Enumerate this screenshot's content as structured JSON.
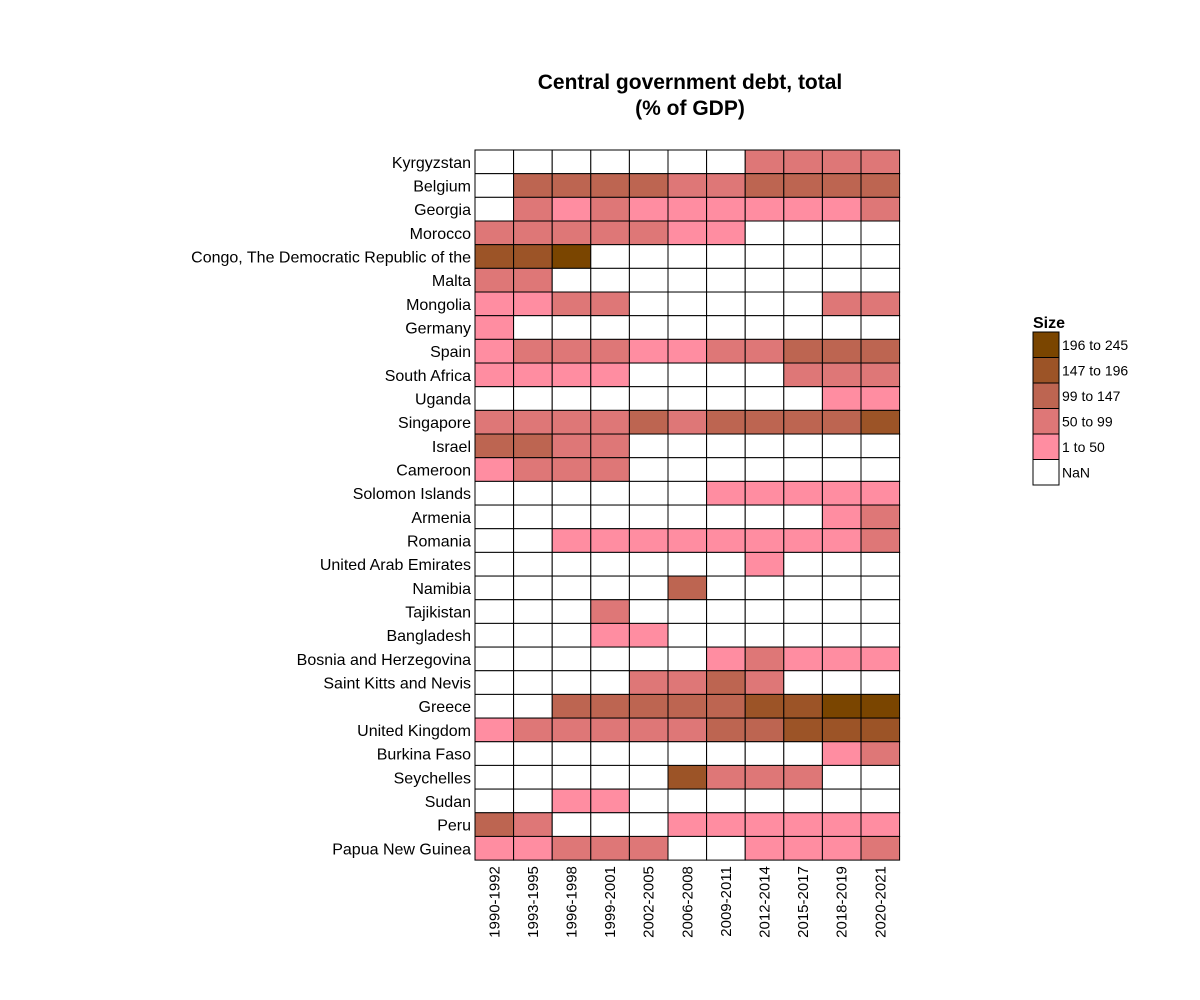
{
  "chart_data": {
    "type": "heatmap",
    "title_lines": [
      "Central government debt, total",
      "(% of GDP)"
    ],
    "columns": [
      "1990-1992",
      "1993-1995",
      "1996-1998",
      "1999-2001",
      "2002-2005",
      "2006-2008",
      "2009-2011",
      "2012-2014",
      "2015-2017",
      "2018-2019",
      "2020-2021"
    ],
    "rows": [
      {
        "label": "Kyrgyzstan",
        "cells": [
          0,
          0,
          0,
          0,
          0,
          0,
          0,
          2,
          2,
          2,
          2
        ]
      },
      {
        "label": "Belgium",
        "cells": [
          0,
          3,
          3,
          3,
          3,
          2,
          2,
          3,
          3,
          3,
          3
        ]
      },
      {
        "label": "Georgia",
        "cells": [
          0,
          2,
          1,
          2,
          1,
          1,
          1,
          1,
          1,
          1,
          2
        ]
      },
      {
        "label": "Morocco",
        "cells": [
          2,
          2,
          2,
          2,
          2,
          1,
          1,
          0,
          0,
          0,
          0
        ]
      },
      {
        "label": "Congo, The Democratic Republic of the",
        "cells": [
          4,
          4,
          5,
          0,
          0,
          0,
          0,
          0,
          0,
          0,
          0
        ]
      },
      {
        "label": "Malta",
        "cells": [
          2,
          2,
          0,
          0,
          0,
          0,
          0,
          0,
          0,
          0,
          0
        ]
      },
      {
        "label": "Mongolia",
        "cells": [
          1,
          1,
          2,
          2,
          0,
          0,
          0,
          0,
          0,
          2,
          2
        ]
      },
      {
        "label": "Germany",
        "cells": [
          1,
          0,
          0,
          0,
          0,
          0,
          0,
          0,
          0,
          0,
          0
        ]
      },
      {
        "label": "Spain",
        "cells": [
          1,
          2,
          2,
          2,
          1,
          1,
          2,
          2,
          3,
          3,
          3
        ]
      },
      {
        "label": "South Africa",
        "cells": [
          1,
          1,
          1,
          1,
          0,
          0,
          0,
          0,
          2,
          2,
          2
        ]
      },
      {
        "label": "Uganda",
        "cells": [
          0,
          0,
          0,
          0,
          0,
          0,
          0,
          0,
          0,
          1,
          1
        ]
      },
      {
        "label": "Singapore",
        "cells": [
          2,
          2,
          2,
          2,
          3,
          2,
          3,
          3,
          3,
          3,
          4
        ]
      },
      {
        "label": "Israel",
        "cells": [
          3,
          3,
          2,
          2,
          0,
          0,
          0,
          0,
          0,
          0,
          0
        ]
      },
      {
        "label": "Cameroon",
        "cells": [
          1,
          2,
          2,
          2,
          0,
          0,
          0,
          0,
          0,
          0,
          0
        ]
      },
      {
        "label": "Solomon Islands",
        "cells": [
          0,
          0,
          0,
          0,
          0,
          0,
          1,
          1,
          1,
          1,
          1
        ]
      },
      {
        "label": "Armenia",
        "cells": [
          0,
          0,
          0,
          0,
          0,
          0,
          0,
          0,
          0,
          1,
          2
        ]
      },
      {
        "label": "Romania",
        "cells": [
          0,
          0,
          1,
          1,
          1,
          1,
          1,
          1,
          1,
          1,
          2
        ]
      },
      {
        "label": "United Arab Emirates",
        "cells": [
          0,
          0,
          0,
          0,
          0,
          0,
          0,
          1,
          0,
          0,
          0
        ]
      },
      {
        "label": "Namibia",
        "cells": [
          0,
          0,
          0,
          0,
          0,
          3,
          0,
          0,
          0,
          0,
          0
        ]
      },
      {
        "label": "Tajikistan",
        "cells": [
          0,
          0,
          0,
          2,
          0,
          0,
          0,
          0,
          0,
          0,
          0
        ]
      },
      {
        "label": "Bangladesh",
        "cells": [
          0,
          0,
          0,
          1,
          1,
          0,
          0,
          0,
          0,
          0,
          0
        ]
      },
      {
        "label": "Bosnia and Herzegovina",
        "cells": [
          0,
          0,
          0,
          0,
          0,
          0,
          1,
          2,
          1,
          1,
          1
        ]
      },
      {
        "label": "Saint Kitts and Nevis",
        "cells": [
          0,
          0,
          0,
          0,
          2,
          2,
          3,
          2,
          0,
          0,
          0
        ]
      },
      {
        "label": "Greece",
        "cells": [
          0,
          0,
          3,
          3,
          3,
          3,
          3,
          4,
          4,
          5,
          5
        ]
      },
      {
        "label": "United Kingdom",
        "cells": [
          1,
          2,
          2,
          2,
          2,
          2,
          3,
          3,
          4,
          4,
          4
        ]
      },
      {
        "label": "Burkina Faso",
        "cells": [
          0,
          0,
          0,
          0,
          0,
          0,
          0,
          0,
          0,
          1,
          2
        ]
      },
      {
        "label": "Seychelles",
        "cells": [
          0,
          0,
          0,
          0,
          0,
          4,
          2,
          2,
          2,
          0,
          0
        ]
      },
      {
        "label": "Sudan",
        "cells": [
          0,
          0,
          1,
          1,
          0,
          0,
          0,
          0,
          0,
          0,
          0
        ]
      },
      {
        "label": "Peru",
        "cells": [
          3,
          2,
          0,
          0,
          0,
          1,
          1,
          1,
          1,
          1,
          1
        ]
      },
      {
        "label": "Papua New Guinea",
        "cells": [
          1,
          1,
          2,
          2,
          2,
          0,
          0,
          1,
          1,
          1,
          2
        ]
      }
    ],
    "legend": {
      "title": "Size",
      "items": [
        {
          "label": "196 to 245",
          "level": 5
        },
        {
          "label": "147 to 196",
          "level": 4
        },
        {
          "label": "99 to 147",
          "level": 3
        },
        {
          "label": "50 to 99",
          "level": 2
        },
        {
          "label": "1 to 50",
          "level": 1
        },
        {
          "label": "NaN",
          "level": 0
        }
      ]
    },
    "level_colors": [
      "#ffffff",
      "#ff8da1",
      "#de7777",
      "#bd6551",
      "#9c5427",
      "#7a4500"
    ],
    "grid_color": "#000000"
  }
}
